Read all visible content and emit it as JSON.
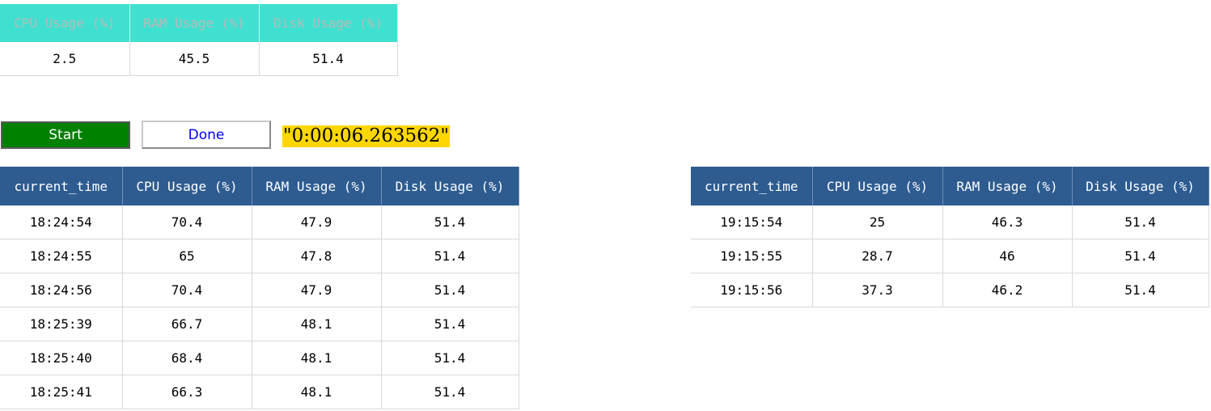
{
  "summary": {
    "headers": [
      "CPU Usage (%)",
      "RAM Usage (%)",
      "Disk Usage (%)"
    ],
    "values": [
      "2.5",
      "45.5",
      "51.4"
    ]
  },
  "controls": {
    "start_label": "Start",
    "done_label": "Done",
    "elapsed": "\"0:00:06.263562\""
  },
  "left_log": {
    "headers": [
      "current_time",
      "CPU Usage (%)",
      "RAM Usage (%)",
      "Disk Usage (%)"
    ],
    "rows": [
      [
        "18:24:54",
        "70.4",
        "47.9",
        "51.4"
      ],
      [
        "18:24:55",
        "65",
        "47.8",
        "51.4"
      ],
      [
        "18:24:56",
        "70.4",
        "47.9",
        "51.4"
      ],
      [
        "18:25:39",
        "66.7",
        "48.1",
        "51.4"
      ],
      [
        "18:25:40",
        "68.4",
        "48.1",
        "51.4"
      ],
      [
        "18:25:41",
        "66.3",
        "48.1",
        "51.4"
      ]
    ]
  },
  "right_log": {
    "headers": [
      "current_time",
      "CPU Usage (%)",
      "RAM Usage (%)",
      "Disk Usage (%)"
    ],
    "rows": [
      [
        "19:15:54",
        "25",
        "46.3",
        "51.4"
      ],
      [
        "19:15:55",
        "28.7",
        "46",
        "51.4"
      ],
      [
        "19:15:56",
        "37.3",
        "46.2",
        "51.4"
      ]
    ]
  },
  "colors": {
    "summary_header_bg": "#40e0d0",
    "log_header_bg": "#2e5c91",
    "start_button_bg": "#008000",
    "elapsed_bg": "#ffd700",
    "done_text": "#0000ee"
  }
}
